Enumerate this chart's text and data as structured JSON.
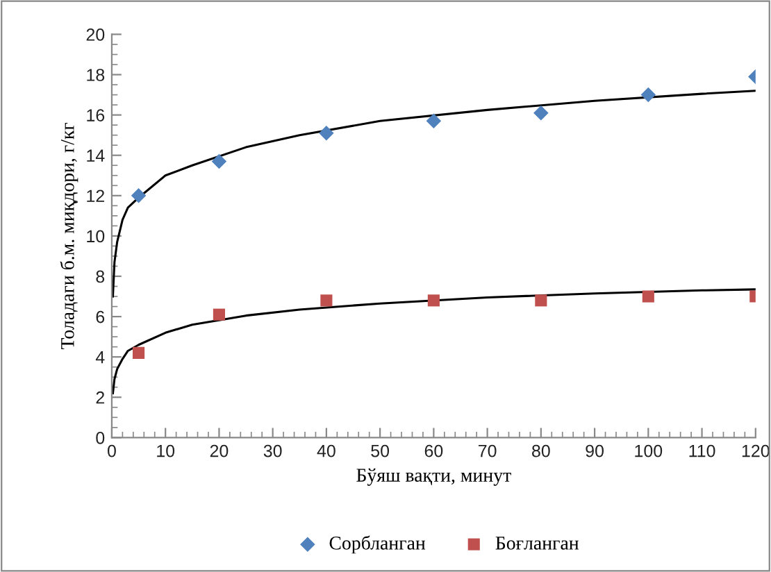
{
  "chart_data": {
    "type": "scatter",
    "xlabel": "Бўяш вақти, минут",
    "ylabel": "Толадаги б.м. миқдори, г/кг",
    "x": [
      5,
      20,
      40,
      60,
      80,
      100,
      120
    ],
    "series": [
      {
        "name": "Сорбланган",
        "color": "#4f81bd",
        "marker": "diamond",
        "values": [
          12.0,
          13.7,
          15.1,
          15.7,
          16.1,
          17.0,
          17.9
        ]
      },
      {
        "name": "Боғланган",
        "color": "#c0504d",
        "marker": "square",
        "values": [
          4.2,
          6.1,
          6.8,
          6.8,
          6.8,
          7.0,
          7.0
        ]
      },
      {
        "type": "line",
        "color": "#000000",
        "marker": "none",
        "x": [
          0.2,
          0.5,
          1,
          2,
          3,
          5,
          10,
          15,
          25,
          35,
          50,
          70,
          90,
          110,
          120
        ],
        "values": [
          7.0,
          8.7,
          9.7,
          10.8,
          11.4,
          11.9,
          13.0,
          13.5,
          14.4,
          15.0,
          15.7,
          16.25,
          16.7,
          17.05,
          17.2
        ]
      },
      {
        "type": "line",
        "color": "#000000",
        "marker": "none",
        "x": [
          0.2,
          0.5,
          1,
          2,
          3,
          5,
          10,
          15,
          25,
          35,
          50,
          70,
          90,
          110,
          120
        ],
        "values": [
          2.2,
          2.9,
          3.4,
          3.9,
          4.3,
          4.6,
          5.2,
          5.6,
          6.05,
          6.35,
          6.65,
          6.95,
          7.15,
          7.3,
          7.35
        ]
      }
    ],
    "xlim": [
      0,
      120
    ],
    "xticks": [
      0,
      10,
      20,
      30,
      40,
      50,
      60,
      70,
      80,
      90,
      100,
      110,
      120
    ],
    "ylim": [
      0,
      20
    ],
    "yticks": [
      0,
      2,
      4,
      6,
      8,
      10,
      12,
      14,
      16,
      18,
      20
    ],
    "grid": false,
    "legend": "bottom"
  }
}
